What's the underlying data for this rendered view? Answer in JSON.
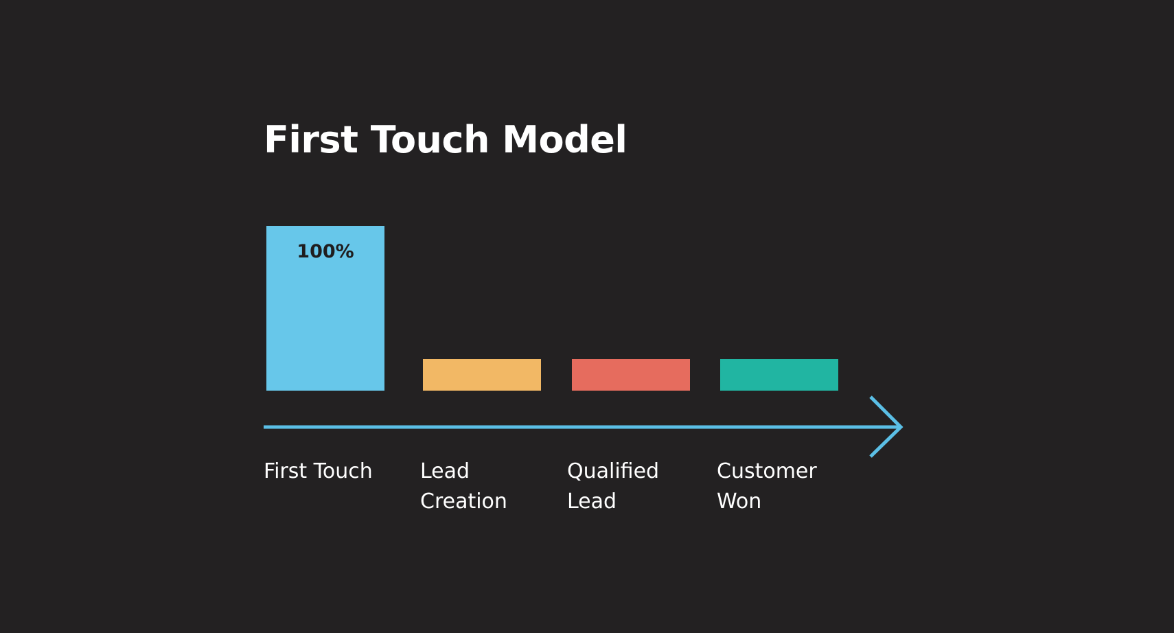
{
  "chart_data": {
    "type": "bar",
    "title": "First Touch Model",
    "categories": [
      {
        "lines": [
          "First Touch"
        ],
        "full": "First Touch"
      },
      {
        "lines": [
          "Lead",
          "Creation"
        ],
        "full": "Lead Creation"
      },
      {
        "lines": [
          "Qualified",
          "Lead"
        ],
        "full": "Qualified Lead"
      },
      {
        "lines": [
          "Customer",
          "Won"
        ],
        "full": "Customer Won"
      }
    ],
    "values": [
      100,
      0,
      0,
      0
    ],
    "value_labels": [
      "100%",
      "",
      "",
      ""
    ],
    "colors": [
      "#67c7ea",
      "#f2b865",
      "#e66c5e",
      "#21b5a2"
    ],
    "axis_color": "#5bbfe6",
    "ylim": [
      0,
      100
    ],
    "ylabel": "",
    "xlabel": "",
    "grid": false,
    "legend": "none"
  }
}
